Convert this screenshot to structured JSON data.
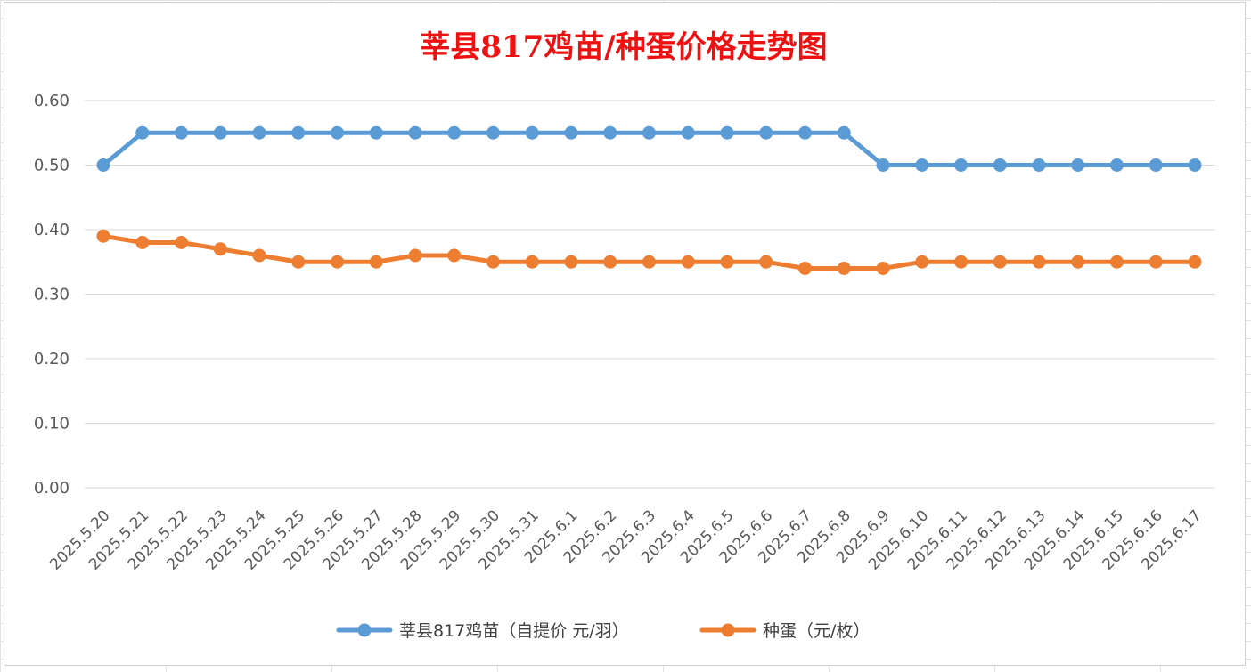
{
  "chart_data": {
    "type": "line",
    "title": "莘县817鸡苗/种蛋价格走势图",
    "xlabel": "",
    "ylabel": "",
    "ylim": [
      0,
      0.6
    ],
    "yticks": [
      "0.00",
      "0.10",
      "0.20",
      "0.30",
      "0.40",
      "0.50",
      "0.60"
    ],
    "grid": true,
    "legend_position": "bottom",
    "categories": [
      "2025.5.20",
      "2025.5.21",
      "2025.5.22",
      "2025.5.23",
      "2025.5.24",
      "2025.5.25",
      "2025.5.26",
      "2025.5.27",
      "2025.5.28",
      "2025.5.29",
      "2025.5.30",
      "2025.5.31",
      "2025.6.1",
      "2025.6.2",
      "2025.6.3",
      "2025.6.4",
      "2025.6.5",
      "2025.6.6",
      "2025.6.7",
      "2025.6.8",
      "2025.6.9",
      "2025.6.10",
      "2025.6.11",
      "2025.6.12",
      "2025.6.13",
      "2025.6.14",
      "2025.6.15",
      "2025.6.16",
      "2025.6.17"
    ],
    "series": [
      {
        "name": "莘县817鸡苗（自提价 元/羽）",
        "color": "#5b9bd5",
        "values": [
          0.5,
          0.55,
          0.55,
          0.55,
          0.55,
          0.55,
          0.55,
          0.55,
          0.55,
          0.55,
          0.55,
          0.55,
          0.55,
          0.55,
          0.55,
          0.55,
          0.55,
          0.55,
          0.55,
          0.55,
          0.5,
          0.5,
          0.5,
          0.5,
          0.5,
          0.5,
          0.5,
          0.5,
          0.5
        ]
      },
      {
        "name": "种蛋（元/枚）",
        "color": "#ed7d31",
        "values": [
          0.39,
          0.38,
          0.38,
          0.37,
          0.36,
          0.35,
          0.35,
          0.35,
          0.36,
          0.36,
          0.35,
          0.35,
          0.35,
          0.35,
          0.35,
          0.35,
          0.35,
          0.35,
          0.34,
          0.34,
          0.34,
          0.35,
          0.35,
          0.35,
          0.35,
          0.35,
          0.35,
          0.35,
          0.35
        ]
      }
    ]
  }
}
